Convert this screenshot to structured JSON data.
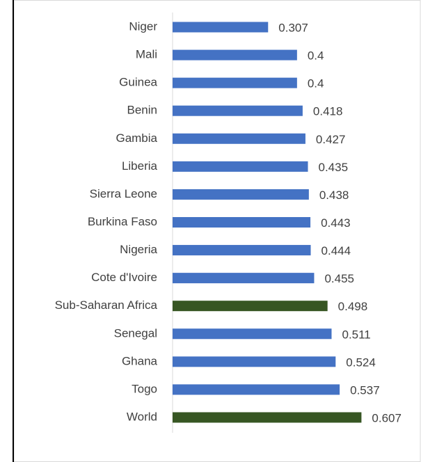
{
  "chart_data": {
    "type": "bar",
    "orientation": "horizontal",
    "categories": [
      "Niger",
      "Mali",
      "Guinea",
      "Benin",
      "Gambia",
      "Liberia",
      "Sierra Leone",
      "Burkina Faso",
      "Nigeria",
      "Cote d'Ivoire",
      "Sub-Saharan Africa",
      "Senegal",
      "Ghana",
      "Togo",
      "World"
    ],
    "values": [
      0.307,
      0.4,
      0.4,
      0.418,
      0.427,
      0.435,
      0.438,
      0.443,
      0.444,
      0.455,
      0.498,
      0.511,
      0.524,
      0.537,
      0.607
    ],
    "colors": [
      "#4472c4",
      "#4472c4",
      "#4472c4",
      "#4472c4",
      "#4472c4",
      "#4472c4",
      "#4472c4",
      "#4472c4",
      "#4472c4",
      "#4472c4",
      "#375623",
      "#4472c4",
      "#4472c4",
      "#4472c4",
      "#375623"
    ],
    "xlim": [
      0,
      0.7
    ]
  }
}
